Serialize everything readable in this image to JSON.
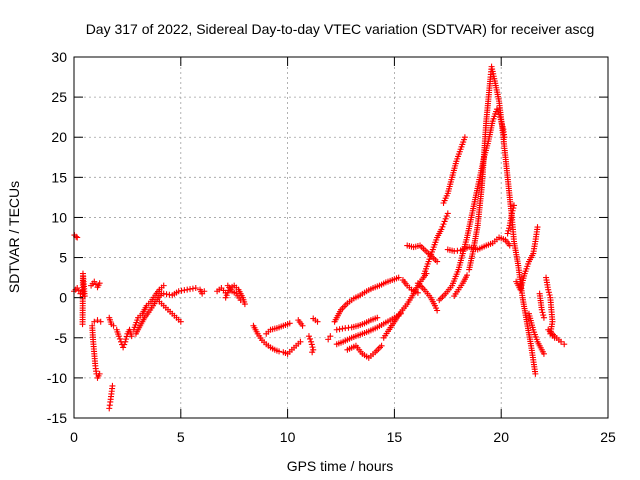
{
  "chart_data": {
    "type": "scatter",
    "title": "Day 317 of 2022, Sidereal Day-to-day VTEC variation (SDTVAR) for receiver ascg",
    "xlabel": "GPS time / hours",
    "ylabel": "SDTVAR / TECUs",
    "xlim": [
      0,
      25
    ],
    "ylim": [
      -15,
      30
    ],
    "xticks": [
      0,
      5,
      10,
      15,
      20,
      25
    ],
    "yticks": [
      -15,
      -10,
      -5,
      0,
      5,
      10,
      15,
      20,
      25,
      30
    ],
    "xtick_labels": [
      "0",
      "5",
      "10",
      "15",
      "20",
      "25"
    ],
    "ytick_labels": [
      "-15",
      "-10",
      "-5",
      "0",
      "5",
      "10",
      "15",
      "20",
      "25",
      "30"
    ],
    "grid": true,
    "marker": "plus",
    "color": "#ff0000",
    "series": [
      {
        "name": "s1",
        "points": [
          [
            0.02,
            7.8
          ],
          [
            0.1,
            7.6
          ],
          [
            0.15,
            7.5
          ]
        ]
      },
      {
        "name": "s2",
        "points": [
          [
            0.0,
            0.8
          ],
          [
            0.15,
            1.2
          ],
          [
            0.3,
            0.5
          ],
          [
            0.4,
            0.9
          ],
          [
            0.5,
            0.2
          ],
          [
            0.45,
            2.0
          ],
          [
            0.42,
            3.0
          ],
          [
            0.4,
            -3.3
          ]
        ]
      },
      {
        "name": "s3",
        "points": [
          [
            0.8,
            1.5
          ],
          [
            0.95,
            2.0
          ],
          [
            1.1,
            1.3
          ],
          [
            1.2,
            1.8
          ]
        ]
      },
      {
        "name": "s4",
        "points": [
          [
            0.85,
            -3.5
          ],
          [
            0.9,
            -5.5
          ],
          [
            0.95,
            -7.0
          ],
          [
            1.0,
            -8.5
          ],
          [
            1.05,
            -9.5
          ],
          [
            1.1,
            -10.0
          ],
          [
            1.2,
            -9.5
          ]
        ]
      },
      {
        "name": "s5",
        "points": [
          [
            0.95,
            -3.0
          ],
          [
            1.1,
            -2.8
          ],
          [
            1.25,
            -3.0
          ]
        ]
      },
      {
        "name": "s6",
        "points": [
          [
            1.65,
            -13.8
          ],
          [
            1.7,
            -13.0
          ],
          [
            1.75,
            -12.0
          ],
          [
            1.8,
            -11.0
          ]
        ]
      },
      {
        "name": "s7",
        "points": [
          [
            1.65,
            -2.5
          ],
          [
            1.75,
            -3.3
          ],
          [
            1.85,
            -3.5
          ]
        ]
      },
      {
        "name": "s8",
        "points": [
          [
            2.0,
            -4.0
          ],
          [
            2.1,
            -4.8
          ],
          [
            2.2,
            -5.5
          ],
          [
            2.3,
            -6.2
          ],
          [
            2.4,
            -5.5
          ],
          [
            2.5,
            -4.5
          ],
          [
            2.6,
            -4.0
          ],
          [
            2.7,
            -4.8
          ]
        ]
      },
      {
        "name": "s9",
        "points": [
          [
            2.8,
            -4.0
          ],
          [
            3.0,
            -2.5
          ],
          [
            3.2,
            -2.0
          ],
          [
            3.4,
            -1.0
          ],
          [
            3.6,
            -0.5
          ],
          [
            3.8,
            0.3
          ],
          [
            4.0,
            1.0
          ],
          [
            4.2,
            1.5
          ]
        ]
      },
      {
        "name": "s10",
        "points": [
          [
            2.9,
            -4.5
          ],
          [
            3.1,
            -3.5
          ],
          [
            3.3,
            -2.5
          ],
          [
            3.5,
            -1.8
          ],
          [
            3.7,
            -1.0
          ],
          [
            3.9,
            -0.2
          ],
          [
            4.1,
            0.5
          ]
        ]
      },
      {
        "name": "s11",
        "points": [
          [
            4.0,
            -0.5
          ],
          [
            4.2,
            -1.0
          ],
          [
            4.4,
            -1.5
          ],
          [
            4.6,
            -2.0
          ],
          [
            4.8,
            -2.5
          ],
          [
            5.0,
            -3.0
          ]
        ]
      },
      {
        "name": "s12",
        "points": [
          [
            4.2,
            0.5
          ],
          [
            4.6,
            0.3
          ],
          [
            4.9,
            0.8
          ],
          [
            5.3,
            1.0
          ],
          [
            5.7,
            1.2
          ]
        ]
      },
      {
        "name": "s13",
        "points": [
          [
            5.9,
            1.0
          ],
          [
            6.0,
            0.5
          ],
          [
            6.1,
            0.8
          ]
        ]
      },
      {
        "name": "s14",
        "points": [
          [
            6.7,
            0.8
          ],
          [
            6.9,
            1.2
          ],
          [
            7.1,
            0.6
          ]
        ]
      },
      {
        "name": "s15",
        "points": [
          [
            7.1,
            0.0
          ],
          [
            7.3,
            1.2
          ],
          [
            7.5,
            1.5
          ],
          [
            7.7,
            1.0
          ],
          [
            7.9,
            0.0
          ],
          [
            8.0,
            -0.8
          ]
        ]
      },
      {
        "name": "s16",
        "points": [
          [
            7.2,
            1.5
          ],
          [
            7.4,
            0.8
          ],
          [
            7.6,
            0.5
          ],
          [
            7.8,
            -0.3
          ]
        ]
      },
      {
        "name": "s17",
        "points": [
          [
            8.4,
            -3.5
          ],
          [
            8.6,
            -4.5
          ],
          [
            8.8,
            -5.3
          ],
          [
            9.0,
            -5.8
          ],
          [
            9.2,
            -6.2
          ],
          [
            9.4,
            -6.5
          ],
          [
            9.6,
            -6.7
          ],
          [
            9.8,
            -6.8
          ],
          [
            10.0,
            -7.0
          ],
          [
            10.2,
            -6.5
          ],
          [
            10.4,
            -6.0
          ],
          [
            10.6,
            -5.5
          ]
        ]
      },
      {
        "name": "s18",
        "points": [
          [
            9.0,
            -4.5
          ],
          [
            9.2,
            -4.0
          ],
          [
            9.5,
            -3.8
          ],
          [
            9.8,
            -3.5
          ],
          [
            10.1,
            -3.2
          ]
        ]
      },
      {
        "name": "s19",
        "points": [
          [
            10.5,
            -2.8
          ],
          [
            10.7,
            -3.5
          ]
        ]
      },
      {
        "name": "s20",
        "points": [
          [
            11.0,
            -4.8
          ],
          [
            11.1,
            -5.5
          ],
          [
            11.2,
            -6.5
          ],
          [
            11.15,
            -6.8
          ]
        ]
      },
      {
        "name": "s21",
        "points": [
          [
            11.2,
            -2.6
          ],
          [
            11.4,
            -3.0
          ]
        ]
      },
      {
        "name": "s22",
        "points": [
          [
            11.9,
            -5.2
          ],
          [
            12.0,
            -4.8
          ]
        ]
      },
      {
        "name": "s23",
        "points": [
          [
            12.2,
            -3.0
          ],
          [
            12.5,
            -1.5
          ],
          [
            12.8,
            -0.7
          ],
          [
            13.1,
            -0.1
          ],
          [
            13.4,
            0.3
          ],
          [
            13.7,
            0.8
          ],
          [
            14.0,
            1.2
          ],
          [
            14.3,
            1.5
          ],
          [
            14.6,
            1.9
          ],
          [
            14.9,
            2.2
          ],
          [
            15.2,
            2.5
          ]
        ]
      },
      {
        "name": "s24",
        "points": [
          [
            12.3,
            -4.0
          ],
          [
            12.7,
            -3.8
          ],
          [
            13.0,
            -3.7
          ],
          [
            13.3,
            -3.5
          ],
          [
            13.6,
            -3.2
          ],
          [
            13.9,
            -2.8
          ],
          [
            14.2,
            -2.5
          ]
        ]
      },
      {
        "name": "s25",
        "points": [
          [
            12.3,
            -5.8
          ],
          [
            12.6,
            -5.5
          ],
          [
            13.0,
            -5.0
          ],
          [
            13.4,
            -4.6
          ],
          [
            13.8,
            -4.2
          ],
          [
            14.2,
            -3.7
          ],
          [
            14.6,
            -3.1
          ],
          [
            15.0,
            -2.5
          ],
          [
            15.3,
            -2.0
          ]
        ]
      },
      {
        "name": "s26",
        "points": [
          [
            12.8,
            -6.5
          ],
          [
            13.2,
            -6.0
          ],
          [
            13.5,
            -7.0
          ],
          [
            13.8,
            -7.5
          ],
          [
            14.1,
            -6.8
          ],
          [
            14.4,
            -6.0
          ]
        ]
      },
      {
        "name": "s27",
        "points": [
          [
            14.5,
            -5.0
          ],
          [
            14.7,
            -4.2
          ],
          [
            15.0,
            -3.0
          ],
          [
            15.3,
            -1.8
          ],
          [
            15.6,
            -0.8
          ],
          [
            15.9,
            0.5
          ],
          [
            16.1,
            1.5
          ],
          [
            16.3,
            2.3
          ],
          [
            16.5,
            3.0
          ]
        ]
      },
      {
        "name": "s28",
        "points": [
          [
            15.4,
            2.2
          ],
          [
            15.6,
            1.5
          ],
          [
            15.8,
            1.0
          ],
          [
            16.1,
            0.6
          ]
        ]
      },
      {
        "name": "s29",
        "points": [
          [
            15.6,
            6.5
          ],
          [
            15.9,
            6.3
          ],
          [
            16.2,
            6.5
          ],
          [
            16.6,
            5.5
          ],
          [
            17.0,
            4.5
          ]
        ]
      },
      {
        "name": "s30",
        "points": [
          [
            16.1,
            1.8
          ],
          [
            16.4,
            1.0
          ],
          [
            16.7,
            0.0
          ],
          [
            16.9,
            -1.0
          ],
          [
            17.0,
            -1.6
          ]
        ]
      },
      {
        "name": "s31",
        "points": [
          [
            16.4,
            3.0
          ],
          [
            16.6,
            4.5
          ],
          [
            16.8,
            6.0
          ],
          [
            17.0,
            7.5
          ],
          [
            17.2,
            8.5
          ],
          [
            17.35,
            9.5
          ],
          [
            17.5,
            10.5
          ]
        ]
      },
      {
        "name": "s32",
        "points": [
          [
            17.1,
            -0.3
          ],
          [
            17.4,
            0.5
          ],
          [
            17.7,
            1.5
          ],
          [
            18.0,
            3.5
          ],
          [
            18.2,
            5.5
          ],
          [
            18.4,
            7.5
          ],
          [
            18.6,
            10.0
          ],
          [
            18.8,
            12.5
          ],
          [
            19.0,
            15.0
          ],
          [
            19.2,
            17.5
          ],
          [
            19.4,
            19.5
          ],
          [
            19.6,
            22.0
          ],
          [
            19.8,
            23.5
          ],
          [
            19.95,
            22.5
          ],
          [
            20.1,
            21.0
          ],
          [
            20.15,
            20.0
          ]
        ]
      },
      {
        "name": "s33",
        "points": [
          [
            17.3,
            11.8
          ],
          [
            17.5,
            13.0
          ],
          [
            17.7,
            15.0
          ],
          [
            17.9,
            17.0
          ],
          [
            18.1,
            18.5
          ],
          [
            18.3,
            20.0
          ]
        ]
      },
      {
        "name": "s34",
        "points": [
          [
            17.5,
            6.0
          ],
          [
            17.8,
            5.8
          ],
          [
            18.1,
            5.9
          ],
          [
            18.5,
            6.3
          ],
          [
            18.9,
            6.0
          ],
          [
            19.3,
            6.5
          ],
          [
            19.6,
            6.8
          ],
          [
            19.9,
            7.5
          ],
          [
            20.2,
            7.2
          ],
          [
            20.4,
            6.5
          ]
        ]
      },
      {
        "name": "s35",
        "points": [
          [
            17.8,
            0.2
          ],
          [
            18.0,
            1.0
          ],
          [
            18.2,
            1.8
          ],
          [
            18.4,
            2.8
          ]
        ]
      },
      {
        "name": "s36",
        "points": [
          [
            18.5,
            3.5
          ],
          [
            18.7,
            6.0
          ],
          [
            18.9,
            9.0
          ],
          [
            19.1,
            14.0
          ],
          [
            19.3,
            22.0
          ],
          [
            19.5,
            27.5
          ],
          [
            19.55,
            28.8
          ],
          [
            19.7,
            27.0
          ],
          [
            19.9,
            24.5
          ],
          [
            20.1,
            20.0
          ],
          [
            20.3,
            15.0
          ],
          [
            20.5,
            10.0
          ],
          [
            20.6,
            7.0
          ],
          [
            20.8,
            4.0
          ],
          [
            21.0,
            0.0
          ],
          [
            21.2,
            -3.0
          ],
          [
            21.4,
            -6.0
          ],
          [
            21.6,
            -9.5
          ]
        ]
      },
      {
        "name": "s37",
        "points": [
          [
            20.3,
            8.0
          ],
          [
            20.4,
            9.0
          ],
          [
            20.5,
            10.5
          ],
          [
            20.6,
            11.5
          ]
        ]
      },
      {
        "name": "s38",
        "points": [
          [
            20.7,
            2.0
          ],
          [
            20.9,
            1.0
          ],
          [
            21.1,
            3.0
          ],
          [
            21.3,
            4.5
          ],
          [
            21.5,
            5.5
          ],
          [
            21.6,
            7.0
          ],
          [
            21.7,
            8.8
          ]
        ]
      },
      {
        "name": "s39",
        "points": [
          [
            21.3,
            -2.0
          ],
          [
            21.5,
            -4.0
          ],
          [
            21.7,
            -5.5
          ],
          [
            21.9,
            -6.5
          ],
          [
            22.0,
            -7.0
          ]
        ]
      },
      {
        "name": "s40",
        "points": [
          [
            21.8,
            0.5
          ],
          [
            21.9,
            -1.5
          ],
          [
            22.0,
            -2.5
          ]
        ]
      },
      {
        "name": "s41",
        "points": [
          [
            22.1,
            2.5
          ],
          [
            22.2,
            1.0
          ],
          [
            22.3,
            0.0
          ],
          [
            22.4,
            -3.0
          ],
          [
            22.3,
            -4.5
          ],
          [
            22.5,
            -5.0
          ]
        ]
      },
      {
        "name": "s42",
        "points": [
          [
            22.2,
            -4.0
          ],
          [
            22.5,
            -4.8
          ],
          [
            22.8,
            -5.5
          ],
          [
            22.95,
            -5.8
          ]
        ]
      }
    ]
  }
}
